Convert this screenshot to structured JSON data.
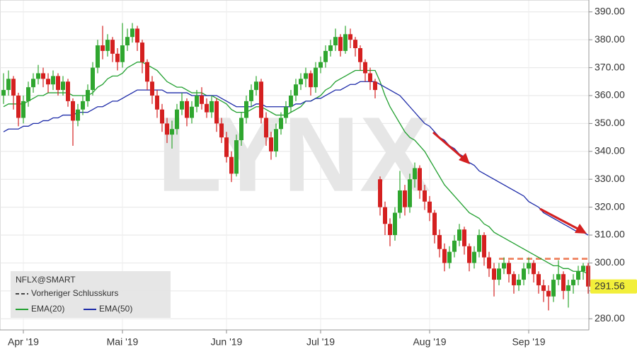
{
  "chart_data": {
    "type": "candlestick",
    "watermark": "LYNX",
    "categories": [
      null,
      null,
      null,
      null,
      "Apr '19",
      null,
      null,
      null,
      null,
      null,
      null,
      null,
      null,
      null,
      null,
      null,
      null,
      null,
      null,
      null,
      null,
      null,
      null,
      null,
      "Mai '19",
      null,
      null,
      null,
      null,
      null,
      null,
      null,
      null,
      null,
      null,
      null,
      null,
      null,
      null,
      null,
      null,
      null,
      null,
      null,
      null,
      "Jun '19",
      null,
      null,
      null,
      null,
      null,
      null,
      null,
      null,
      null,
      null,
      null,
      null,
      null,
      null,
      null,
      null,
      null,
      null,
      "Jul '19",
      null,
      null,
      null,
      null,
      null,
      null,
      null,
      null,
      null,
      null,
      null,
      null,
      null,
      null,
      null,
      null,
      null,
      null,
      null,
      null,
      null,
      "Aug '19",
      null,
      null,
      null,
      null,
      null,
      null,
      null,
      null,
      null,
      null,
      null,
      null,
      null,
      null,
      null,
      null,
      null,
      null,
      null,
      "Sep '19",
      null,
      null,
      null,
      null,
      null,
      null,
      null,
      null,
      null,
      null,
      null,
      null
    ],
    "series": [
      {
        "name": "NFLX@SMART",
        "up_color": "#2fa62f",
        "down_color": "#d42020",
        "open": [
          360,
          362,
          366,
          360,
          352,
          358,
          363,
          366,
          368,
          366,
          364,
          367,
          362,
          365,
          358,
          351,
          355,
          358,
          362,
          370,
          378,
          376,
          380,
          375,
          372,
          378,
          381,
          384,
          379,
          372,
          365,
          360,
          355,
          350,
          346,
          348,
          355,
          358,
          352,
          356,
          360,
          357,
          354,
          358,
          350,
          345,
          338,
          332,
          344,
          352,
          358,
          362,
          365,
          352,
          345,
          340,
          348,
          352,
          356,
          360,
          364,
          366,
          368,
          363,
          370,
          372,
          376,
          378,
          381,
          376,
          382,
          380,
          377,
          372,
          368,
          365,
          330,
          320,
          314,
          310,
          318,
          326,
          320,
          330,
          334,
          326,
          322,
          318,
          310,
          305,
          300,
          304,
          308,
          312,
          306,
          300,
          304,
          310,
          302,
          298,
          294,
          298,
          300,
          296,
          292,
          294,
          298,
          300,
          296,
          292,
          290,
          288,
          294,
          296,
          290,
          292,
          294,
          297,
          299
        ],
        "high": [
          368,
          369,
          367,
          361,
          360,
          365,
          368,
          371,
          370,
          368,
          369,
          368,
          367,
          366,
          359,
          357,
          360,
          364,
          372,
          380,
          385,
          382,
          381,
          377,
          386,
          384,
          386,
          385,
          380,
          373,
          367,
          362,
          357,
          352,
          351,
          357,
          361,
          359,
          358,
          362,
          363,
          359,
          360,
          359,
          352,
          347,
          340,
          346,
          354,
          360,
          364,
          367,
          366,
          354,
          347,
          350,
          354,
          358,
          362,
          366,
          368,
          370,
          369,
          372,
          374,
          378,
          380,
          384,
          382,
          385,
          384,
          381,
          378,
          373,
          370,
          366,
          331,
          322,
          316,
          320,
          333,
          328,
          332,
          336,
          335,
          328,
          324,
          319,
          312,
          307,
          306,
          310,
          314,
          313,
          307,
          306,
          312,
          311,
          304,
          300,
          300,
          302,
          301,
          297,
          296,
          300,
          302,
          301,
          297,
          294,
          292,
          296,
          301,
          297,
          294,
          296,
          299,
          300,
          300
        ],
        "low": [
          357,
          360,
          355,
          349,
          350,
          356,
          361,
          364,
          363,
          361,
          362,
          360,
          360,
          356,
          342,
          349,
          353,
          356,
          360,
          368,
          373,
          374,
          372,
          369,
          370,
          376,
          379,
          376,
          368,
          362,
          357,
          352,
          347,
          343,
          341,
          346,
          353,
          349,
          350,
          354,
          355,
          352,
          352,
          347,
          343,
          336,
          329,
          331,
          342,
          350,
          356,
          360,
          350,
          342,
          337,
          338,
          346,
          350,
          354,
          358,
          362,
          363,
          360,
          361,
          368,
          370,
          374,
          376,
          374,
          375,
          377,
          374,
          369,
          365,
          362,
          359,
          317,
          310,
          306,
          308,
          316,
          317,
          318,
          327,
          323,
          319,
          315,
          307,
          302,
          297,
          298,
          302,
          306,
          303,
          297,
          298,
          302,
          299,
          295,
          288,
          292,
          296,
          293,
          289,
          290,
          292,
          296,
          293,
          289,
          286,
          283,
          286,
          292,
          287,
          284,
          289,
          292,
          294,
          289
        ],
        "close": [
          362,
          366,
          360,
          352,
          358,
          363,
          366,
          368,
          366,
          364,
          367,
          362,
          365,
          358,
          351,
          355,
          358,
          362,
          370,
          378,
          376,
          380,
          375,
          372,
          378,
          381,
          384,
          379,
          372,
          365,
          360,
          355,
          350,
          346,
          348,
          355,
          358,
          352,
          356,
          360,
          357,
          354,
          358,
          350,
          345,
          338,
          332,
          344,
          352,
          358,
          362,
          365,
          352,
          345,
          340,
          348,
          352,
          356,
          360,
          364,
          366,
          368,
          363,
          370,
          372,
          376,
          378,
          381,
          376,
          382,
          380,
          377,
          372,
          368,
          365,
          362,
          320,
          314,
          310,
          318,
          326,
          320,
          330,
          334,
          326,
          322,
          318,
          310,
          305,
          300,
          304,
          308,
          312,
          306,
          300,
          304,
          310,
          302,
          298,
          294,
          298,
          300,
          296,
          292,
          294,
          298,
          300,
          296,
          292,
          290,
          288,
          294,
          296,
          290,
          292,
          294,
          297,
          299,
          291.56
        ]
      },
      {
        "name": "EMA(20)",
        "color": "#22a030",
        "values": [
          356,
          357,
          357,
          357,
          357,
          358,
          359,
          360,
          360,
          361,
          361,
          361,
          361,
          361,
          360,
          360,
          360,
          360,
          361,
          363,
          364,
          366,
          367,
          367,
          368,
          370,
          371,
          372,
          372,
          371,
          370,
          369,
          367,
          365,
          364,
          363,
          363,
          362,
          361,
          361,
          361,
          360,
          360,
          359,
          358,
          357,
          355,
          354,
          354,
          354,
          355,
          356,
          356,
          355,
          354,
          353,
          353,
          353,
          354,
          355,
          356,
          358,
          358,
          359,
          360,
          362,
          363,
          365,
          366,
          367,
          368,
          369,
          369,
          369,
          369,
          369,
          365,
          360,
          356,
          353,
          350,
          347,
          345,
          344,
          342,
          340,
          337,
          334,
          331,
          328,
          326,
          324,
          322,
          320,
          318,
          317,
          316,
          314,
          313,
          311,
          310,
          309,
          308,
          307,
          306,
          305,
          304,
          303,
          302,
          301,
          300,
          299,
          299,
          298,
          298,
          297,
          297,
          297,
          296
        ]
      },
      {
        "name": "EMA(50)",
        "color": "#1c2aa8",
        "values": [
          347,
          348,
          348,
          348,
          349,
          349,
          350,
          350,
          351,
          351,
          352,
          352,
          353,
          353,
          353,
          354,
          354,
          354,
          355,
          356,
          356,
          357,
          358,
          358,
          359,
          360,
          361,
          362,
          362,
          362,
          362,
          362,
          362,
          361,
          361,
          361,
          361,
          361,
          360,
          360,
          360,
          360,
          360,
          360,
          359,
          358,
          357,
          356,
          356,
          356,
          356,
          357,
          357,
          356,
          356,
          356,
          356,
          356,
          356,
          357,
          357,
          358,
          358,
          359,
          359,
          360,
          361,
          362,
          362,
          363,
          364,
          364,
          365,
          365,
          365,
          365,
          364,
          363,
          362,
          361,
          360,
          358,
          356,
          354,
          352,
          350,
          349,
          347,
          345,
          344,
          342,
          341,
          339,
          338,
          336,
          335,
          333,
          332,
          331,
          330,
          329,
          328,
          327,
          326,
          325,
          324,
          322,
          321,
          320,
          318,
          317,
          316,
          315,
          314,
          313,
          312,
          311,
          311,
          310
        ]
      }
    ],
    "reference_lines": [
      {
        "name": "Vorheriger Schlusskurs",
        "value": 301.5,
        "color": "#f08a6a"
      }
    ],
    "ylim": [
      276,
      394
    ],
    "yticks": [
      {
        "value": 280,
        "label": "280.00"
      },
      {
        "value": 290,
        "label": "290.00"
      },
      {
        "value": 300,
        "label": "300.00"
      },
      {
        "value": 310,
        "label": "310.00"
      },
      {
        "value": 320,
        "label": "320.00"
      },
      {
        "value": 330,
        "label": "330.00"
      },
      {
        "value": 340,
        "label": "340.00"
      },
      {
        "value": 350,
        "label": "350.00"
      },
      {
        "value": 360,
        "label": "360.00"
      },
      {
        "value": 370,
        "label": "370.00"
      },
      {
        "value": 380,
        "label": "380.00"
      },
      {
        "value": 390,
        "label": "390.00"
      }
    ],
    "grid": true
  }
}
